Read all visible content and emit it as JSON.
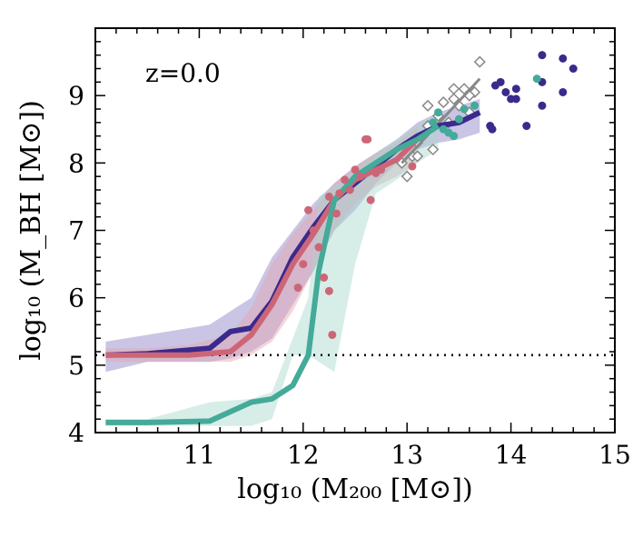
{
  "chart_data": {
    "type": "line",
    "annotation": "z=0.0",
    "xlabel": "log₁₀ (M₂₀₀ [M⊙])",
    "ylabel": "log₁₀ (M_BH [M⊙])",
    "xlim": [
      10.0,
      15.0
    ],
    "ylim": [
      4.0,
      10.0
    ],
    "x_ticks": [
      "11",
      "12",
      "13",
      "14",
      "15"
    ],
    "y_ticks": [
      "4",
      "5",
      "6",
      "7",
      "8",
      "9"
    ],
    "reference_line": {
      "y": 5.15,
      "style": "dotted",
      "color": "#000000"
    },
    "colors": {
      "purple": "#3a2a8c",
      "pink": "#cc6677",
      "teal": "#44aa99",
      "gray": "#888888",
      "purple_band": "#8a7fc4",
      "pink_band": "#e3a3b0",
      "teal_band": "#a6d8cd"
    },
    "series": [
      {
        "color_key": "purple",
        "x": [
          10.1,
          10.5,
          11.1,
          11.3,
          11.5,
          11.7,
          11.9,
          12.1,
          12.3,
          12.5,
          12.7,
          12.9,
          13.1,
          13.3,
          13.5,
          13.7
        ],
        "y": [
          5.15,
          5.17,
          5.25,
          5.5,
          5.55,
          5.95,
          6.6,
          7.05,
          7.45,
          7.7,
          7.95,
          8.2,
          8.4,
          8.55,
          8.6,
          8.75
        ],
        "lo": [
          4.9,
          5.05,
          5.05,
          5.1,
          5.2,
          5.4,
          5.9,
          6.4,
          7.0,
          7.3,
          7.7,
          8.0,
          8.2,
          8.3,
          8.35,
          8.45
        ],
        "hi": [
          5.35,
          5.45,
          5.6,
          5.8,
          6.0,
          6.6,
          7.0,
          7.4,
          7.7,
          7.95,
          8.15,
          8.35,
          8.6,
          8.75,
          8.85,
          8.95
        ]
      },
      {
        "color_key": "pink",
        "x": [
          10.1,
          10.5,
          10.9,
          11.3,
          11.5,
          11.7,
          11.9,
          12.1,
          12.3,
          12.5,
          12.7,
          12.9,
          13.1
        ],
        "y": [
          5.15,
          5.15,
          5.15,
          5.2,
          5.45,
          5.9,
          6.5,
          6.95,
          7.45,
          7.75,
          7.9,
          8.05,
          8.35
        ],
        "lo": [
          5.05,
          5.05,
          5.05,
          5.05,
          5.15,
          5.35,
          5.8,
          6.4,
          7.0,
          7.4,
          7.65,
          7.8,
          8.0
        ],
        "hi": [
          5.25,
          5.25,
          5.3,
          5.45,
          5.85,
          6.5,
          6.95,
          7.3,
          7.7,
          7.95,
          8.15,
          8.3,
          8.55
        ]
      },
      {
        "color_key": "teal",
        "x": [
          10.1,
          10.5,
          11.1,
          11.5,
          11.7,
          11.9,
          12.05,
          12.15,
          12.3,
          12.5,
          12.7,
          12.9,
          13.1,
          13.3
        ],
        "y": [
          4.15,
          4.15,
          4.17,
          4.45,
          4.5,
          4.7,
          5.15,
          6.4,
          7.45,
          7.8,
          8.0,
          8.2,
          8.35,
          8.55
        ],
        "lo": [
          4.1,
          4.1,
          4.1,
          4.1,
          4.2,
          5.15,
          5.15,
          5.05,
          4.9,
          6.5,
          7.55,
          7.75,
          8.0,
          8.2
        ],
        "hi": [
          4.2,
          4.2,
          4.45,
          4.5,
          4.6,
          5.4,
          6.0,
          7.5,
          7.65,
          7.9,
          8.15,
          8.35,
          8.55,
          8.75
        ]
      }
    ],
    "scatter": [
      {
        "color_key": "purple",
        "points": [
          [
            13.8,
            8.55
          ],
          [
            13.82,
            8.5
          ],
          [
            13.85,
            9.15
          ],
          [
            13.9,
            9.2
          ],
          [
            13.95,
            9.05
          ],
          [
            14.0,
            8.95
          ],
          [
            14.05,
            9.1
          ],
          [
            14.05,
            8.95
          ],
          [
            14.15,
            8.55
          ],
          [
            14.3,
            9.6
          ],
          [
            14.3,
            9.2
          ],
          [
            14.3,
            8.85
          ],
          [
            14.5,
            9.55
          ],
          [
            14.5,
            9.05
          ],
          [
            14.6,
            9.4
          ]
        ]
      },
      {
        "color_key": "pink",
        "points": [
          [
            11.95,
            6.15
          ],
          [
            12.0,
            6.5
          ],
          [
            12.05,
            7.3
          ],
          [
            12.1,
            7.0
          ],
          [
            12.15,
            6.75
          ],
          [
            12.2,
            6.3
          ],
          [
            12.25,
            6.1
          ],
          [
            12.25,
            7.5
          ],
          [
            12.28,
            5.45
          ],
          [
            12.32,
            7.25
          ],
          [
            12.35,
            7.55
          ],
          [
            12.4,
            7.75
          ],
          [
            12.45,
            7.6
          ],
          [
            12.5,
            7.9
          ],
          [
            12.55,
            7.8
          ],
          [
            12.6,
            8.35
          ],
          [
            12.62,
            8.35
          ],
          [
            12.65,
            7.45
          ],
          [
            12.7,
            7.85
          ],
          [
            12.75,
            7.9
          ],
          [
            13.05,
            7.95
          ]
        ]
      },
      {
        "color_key": "teal",
        "points": [
          [
            13.25,
            8.6
          ],
          [
            13.3,
            8.75
          ],
          [
            13.35,
            8.5
          ],
          [
            13.4,
            8.45
          ],
          [
            13.45,
            8.4
          ],
          [
            13.5,
            8.65
          ],
          [
            13.55,
            8.8
          ],
          [
            13.65,
            8.85
          ],
          [
            14.25,
            9.25
          ]
        ]
      }
    ],
    "observations": {
      "marker": "diamond",
      "color_key": "gray",
      "points": [
        [
          12.95,
          8.0
        ],
        [
          13.0,
          7.8
        ],
        [
          13.05,
          8.1
        ],
        [
          13.1,
          8.3
        ],
        [
          13.15,
          8.4
        ],
        [
          13.2,
          8.55
        ],
        [
          13.25,
          8.2
        ],
        [
          13.3,
          8.7
        ],
        [
          13.35,
          8.9
        ],
        [
          13.4,
          8.6
        ],
        [
          13.45,
          8.95
        ],
        [
          13.5,
          8.85
        ],
        [
          13.55,
          9.1
        ],
        [
          13.6,
          8.75
        ],
        [
          13.65,
          9.05
        ],
        [
          13.7,
          9.5
        ],
        [
          13.1,
          8.1
        ],
        [
          13.2,
          8.85
        ],
        [
          13.45,
          9.1
        ],
        [
          13.6,
          9.0
        ]
      ],
      "fit_line": [
        [
          12.95,
          8.0
        ],
        [
          13.7,
          9.25
        ]
      ]
    }
  }
}
